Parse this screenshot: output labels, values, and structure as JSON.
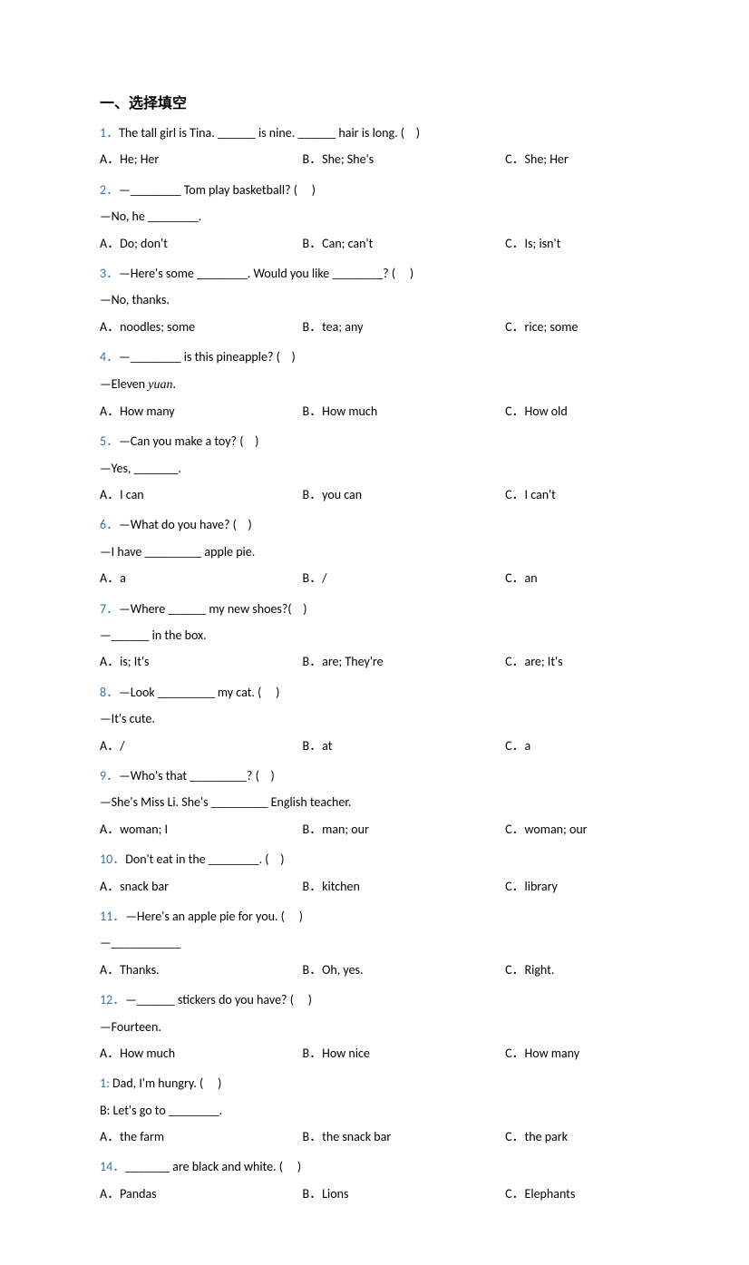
{
  "section_title": "一、选择填空",
  "questions": [
    {
      "num": "1．",
      "lines": [
        "The tall girl is Tina. ______ is nine. ______ hair is long. (    )"
      ],
      "opts": {
        "a": "A．He; Her",
        "b": "B．She; She's",
        "c": "C．She; Her"
      }
    },
    {
      "num": "2．",
      "lines": [
        "—________ Tom play basketball? (     )",
        "—No, he ________."
      ],
      "opts": {
        "a": "A．Do; don't",
        "b": "B．Can; can't",
        "c": "C．Is; isn't"
      }
    },
    {
      "num": "3．",
      "lines": [
        "—Here's some ________. Would you like ________? (     )",
        "—No, thanks."
      ],
      "opts": {
        "a": "A．noodles; some",
        "b": "B．tea; any",
        "c": "C．rice; some"
      }
    },
    {
      "num": "4．",
      "lines": [
        "—________ is this pineapple? (    )",
        "—Eleven "
      ],
      "italic_after": "yuan",
      "after_italic": ".",
      "opts": {
        "a": "A．How many",
        "b": "B．How much",
        "c": "C．How old"
      }
    },
    {
      "num": "5．",
      "lines": [
        "—Can you make a toy? (    )",
        "—Yes, _______."
      ],
      "opts": {
        "a": "A．I can",
        "b": "B．you can",
        "c": "C．I can't"
      }
    },
    {
      "num": "6．",
      "lines": [
        "—What do you have? (    )",
        "—I have _________ apple pie."
      ],
      "opts": {
        "a": "A．a",
        "b": "B．/",
        "c": "C．an"
      }
    },
    {
      "num": "7．",
      "lines": [
        "—Where ______ my new shoes?(    )",
        "—______ in the box."
      ],
      "opts": {
        "a": "A．is; It's",
        "b": "B．are; They're",
        "c": "C．are; It's"
      }
    },
    {
      "num": "8．",
      "lines": [
        "—Look _________ my cat. (     )",
        "—It's cute."
      ],
      "opts": {
        "a": "A．/",
        "b": "B．at",
        "c": "C．a"
      }
    },
    {
      "num": "9．",
      "lines": [
        "—Who's that _________? (    )",
        "—She's Miss Li. She's _________ English teacher."
      ],
      "opts": {
        "a": "A．woman; I",
        "b": "B．man; our",
        "c": "C．woman; our"
      }
    },
    {
      "num": "10．",
      "lines": [
        "Don't eat in the ________. (    )"
      ],
      "opts": {
        "a": "A．snack bar",
        "b": "B．kitchen",
        "c": "C．library"
      }
    },
    {
      "num": "11．",
      "lines": [
        "—Here's an apple pie for you. (     )",
        "—___________"
      ],
      "opts": {
        "a": "A．Thanks.",
        "b": "B．Oh, yes.",
        "c": "C．Right."
      }
    },
    {
      "num": "12．",
      "lines": [
        "—______ stickers do you have? (     )",
        "—Fourteen."
      ],
      "opts": {
        "a": "A．How much",
        "b": "B．How nice",
        "c": "C．How many"
      }
    },
    {
      "num": "1:",
      "lines": [
        " Dad, I'm hungry. (     )",
        "B: Let's go to ________."
      ],
      "opts": {
        "a": "A．the farm",
        "b": "B．the snack bar",
        "c": "C．the park"
      }
    },
    {
      "num": "14．",
      "lines": [
        "_______ are black and white. (     )"
      ],
      "opts": {
        "a": "A．Pandas",
        "b": "B．Lions",
        "c": "C．Elephants"
      }
    }
  ]
}
